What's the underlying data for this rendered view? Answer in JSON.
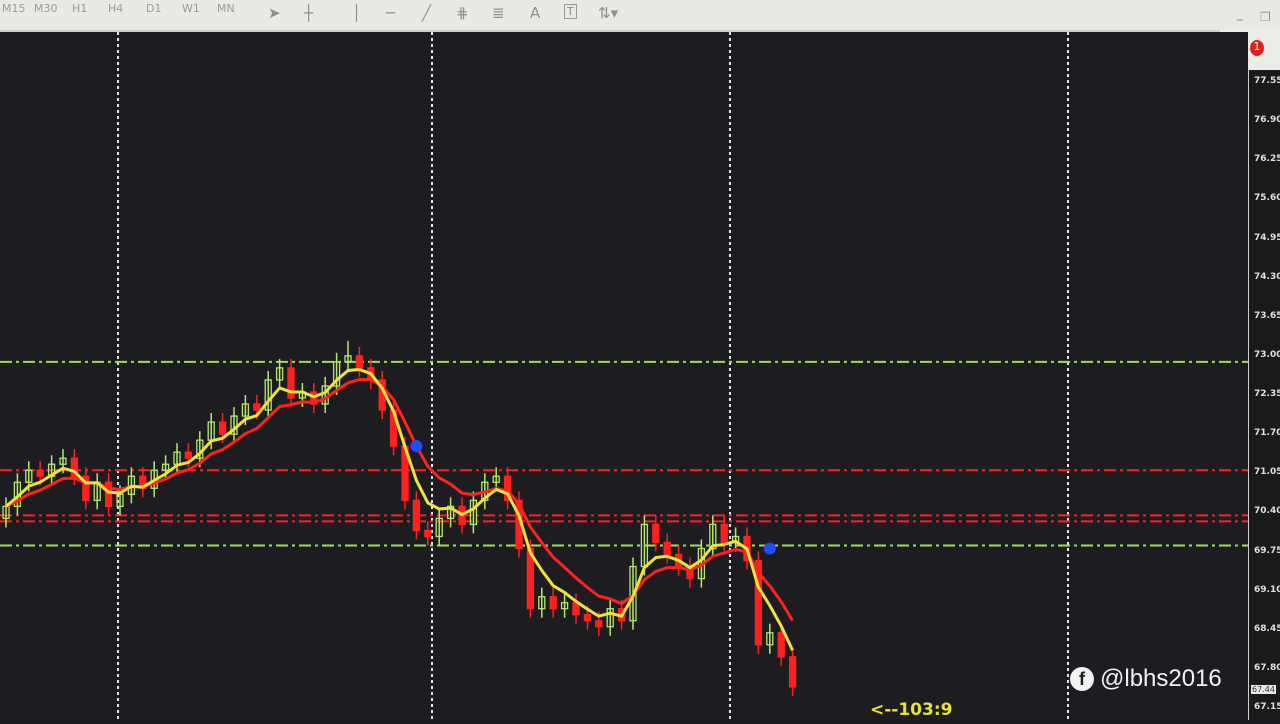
{
  "toolbar": {
    "timeframes": [
      "M15",
      "M30",
      "H1",
      "H4",
      "D1",
      "W1",
      "MN"
    ],
    "tools": [
      "cursor-icon",
      "crosshair-icon",
      "vertical-line-icon",
      "horizontal-line-icon",
      "trendline-icon",
      "fibonacci-fan-icon",
      "fibonacci-retracement-icon",
      "text-icon",
      "text-label-icon",
      "arrows-icon"
    ],
    "text_tool": "A",
    "label_tool": "T",
    "notification_count": "1"
  },
  "overlay": {
    "counter_text": "<--103:9",
    "watermark": "@lbhs2016"
  },
  "chart_data": {
    "type": "candlestick",
    "price_axis_ticks": [
      "77.55",
      "76.90",
      "76.25",
      "75.60",
      "74.95",
      "74.30",
      "73.65",
      "73.00",
      "72.35",
      "71.70",
      "71.05",
      "70.40",
      "69.75",
      "69.10",
      "68.45",
      "67.80",
      "67.15"
    ],
    "ylim": [
      67.15,
      77.55
    ],
    "current_price": "67.44",
    "colors": {
      "bull": "#b5e86a",
      "bear": "#ff2020",
      "ma_fast": "#f0e040",
      "ma_slow": "#ff2020",
      "bg": "#1d1d21"
    },
    "grid": false,
    "candles": [
      [
        70.3,
        70.65,
        70.15,
        70.5
      ],
      [
        70.5,
        71.05,
        70.35,
        70.9
      ],
      [
        70.9,
        71.25,
        70.75,
        71.1
      ],
      [
        71.1,
        71.25,
        70.85,
        71.0
      ],
      [
        71.0,
        71.35,
        70.85,
        71.2
      ],
      [
        71.2,
        71.45,
        71.05,
        71.3
      ],
      [
        71.3,
        71.45,
        70.85,
        71.0
      ],
      [
        71.0,
        71.15,
        70.45,
        70.6
      ],
      [
        70.6,
        71.05,
        70.45,
        70.9
      ],
      [
        70.9,
        71.05,
        70.35,
        70.5
      ],
      [
        70.5,
        70.85,
        70.35,
        70.7
      ],
      [
        70.7,
        71.15,
        70.55,
        71.0
      ],
      [
        71.0,
        71.15,
        70.65,
        70.8
      ],
      [
        70.8,
        71.25,
        70.65,
        71.1
      ],
      [
        71.1,
        71.35,
        70.95,
        71.2
      ],
      [
        71.2,
        71.55,
        71.05,
        71.4
      ],
      [
        71.4,
        71.55,
        71.15,
        71.3
      ],
      [
        71.3,
        71.75,
        71.15,
        71.6
      ],
      [
        71.6,
        72.05,
        71.45,
        71.9
      ],
      [
        71.9,
        72.05,
        71.55,
        71.7
      ],
      [
        71.7,
        72.15,
        71.55,
        72.0
      ],
      [
        72.0,
        72.35,
        71.85,
        72.2
      ],
      [
        72.2,
        72.35,
        71.95,
        72.1
      ],
      [
        72.1,
        72.75,
        71.95,
        72.6
      ],
      [
        72.6,
        72.95,
        72.45,
        72.8
      ],
      [
        72.8,
        72.95,
        72.15,
        72.3
      ],
      [
        72.3,
        72.55,
        72.15,
        72.4
      ],
      [
        72.4,
        72.55,
        72.05,
        72.2
      ],
      [
        72.2,
        72.65,
        72.05,
        72.5
      ],
      [
        72.5,
        73.05,
        72.35,
        72.9
      ],
      [
        72.9,
        73.25,
        72.75,
        73.0
      ],
      [
        73.0,
        73.15,
        72.65,
        72.8
      ],
      [
        72.8,
        72.95,
        72.45,
        72.6
      ],
      [
        72.6,
        72.75,
        71.95,
        72.1
      ],
      [
        72.1,
        72.25,
        71.35,
        71.5
      ],
      [
        71.5,
        71.65,
        70.45,
        70.6
      ],
      [
        70.6,
        70.75,
        69.95,
        70.1
      ],
      [
        70.1,
        70.25,
        69.85,
        70.0
      ],
      [
        70.0,
        70.45,
        69.85,
        70.3
      ],
      [
        70.3,
        70.65,
        70.15,
        70.5
      ],
      [
        70.5,
        70.65,
        70.05,
        70.2
      ],
      [
        70.2,
        70.75,
        70.05,
        70.6
      ],
      [
        70.6,
        71.05,
        70.45,
        70.9
      ],
      [
        70.9,
        71.15,
        70.75,
        71.0
      ],
      [
        71.0,
        71.15,
        70.45,
        70.6
      ],
      [
        70.6,
        70.75,
        69.65,
        69.8
      ],
      [
        69.8,
        69.95,
        68.65,
        68.8
      ],
      [
        68.8,
        69.15,
        68.65,
        69.0
      ],
      [
        69.0,
        69.15,
        68.65,
        68.8
      ],
      [
        68.8,
        69.05,
        68.65,
        68.9
      ],
      [
        68.9,
        69.05,
        68.55,
        68.7
      ],
      [
        68.7,
        68.85,
        68.45,
        68.6
      ],
      [
        68.6,
        68.75,
        68.35,
        68.5
      ],
      [
        68.5,
        68.95,
        68.35,
        68.8
      ],
      [
        68.8,
        68.95,
        68.45,
        68.6
      ],
      [
        68.6,
        69.65,
        68.45,
        69.5
      ],
      [
        69.5,
        70.35,
        69.35,
        70.2
      ],
      [
        70.2,
        70.35,
        69.75,
        69.9
      ],
      [
        69.9,
        70.05,
        69.55,
        69.7
      ],
      [
        69.7,
        69.85,
        69.35,
        69.5
      ],
      [
        69.5,
        69.65,
        69.15,
        69.3
      ],
      [
        69.3,
        69.95,
        69.15,
        69.8
      ],
      [
        69.8,
        70.35,
        69.65,
        70.2
      ],
      [
        70.2,
        70.35,
        69.75,
        69.9
      ],
      [
        69.9,
        70.15,
        69.75,
        70.0
      ],
      [
        70.0,
        70.15,
        69.45,
        69.6
      ],
      [
        69.6,
        69.75,
        68.05,
        68.2
      ],
      [
        68.2,
        68.55,
        68.05,
        68.4
      ],
      [
        68.4,
        68.55,
        67.85,
        68.0
      ],
      [
        68.0,
        68.15,
        67.35,
        67.5
      ]
    ],
    "horizontal_levels": [
      {
        "price": 72.9,
        "color": "#9be05a"
      },
      {
        "price": 71.1,
        "color": "#ff2020"
      },
      {
        "price": 70.35,
        "color": "#ff2020"
      },
      {
        "price": 70.25,
        "color": "#ff2020"
      },
      {
        "price": 69.85,
        "color": "#9be05a"
      }
    ],
    "signal_arrows": [
      {
        "candle": 36,
        "price": 71.5
      },
      {
        "candle": 67,
        "price": 69.8
      }
    ]
  }
}
